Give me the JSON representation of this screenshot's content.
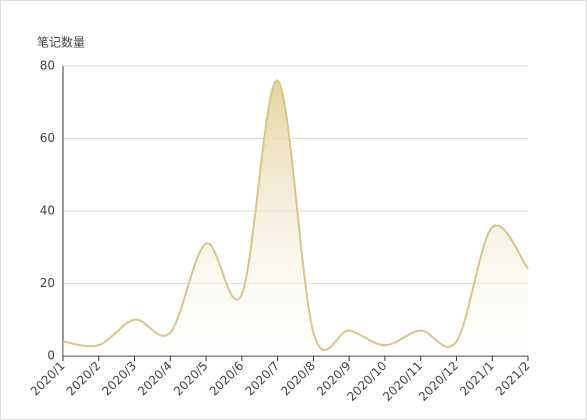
{
  "chart_data": {
    "type": "line",
    "y_axis_label": "笔记数量",
    "categories": [
      "2020/1",
      "2020/2",
      "2020/3",
      "2020/4",
      "2020/5",
      "2020/6",
      "2020/7",
      "2020/8",
      "2020/9",
      "2020/10",
      "2020/11",
      "2020/12",
      "2021/1",
      "2021/2"
    ],
    "values": [
      4,
      3,
      10,
      6.5,
      31,
      17,
      76,
      6.5,
      7,
      3,
      7,
      4,
      35.5,
      24
    ],
    "color": "#d9c68c",
    "smooth": true,
    "area": true,
    "ylim": [
      0,
      80
    ],
    "yticks": [
      0,
      20,
      40,
      60,
      80
    ],
    "grid": true
  }
}
